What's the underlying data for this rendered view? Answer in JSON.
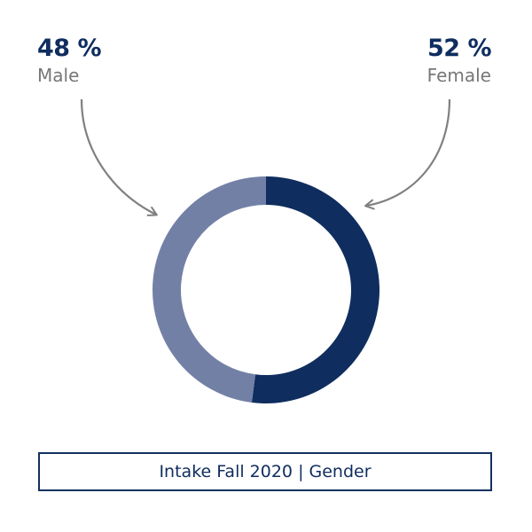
{
  "chart_data": {
    "type": "pie",
    "variant": "donut",
    "title": "Intake Fall 2020 | Gender",
    "series": [
      {
        "name": "Male",
        "value": 48,
        "value_label": "48 %",
        "color": "#7380a6"
      },
      {
        "name": "Female",
        "value": 52,
        "value_label": "52 %",
        "color": "#0f2d5f"
      }
    ],
    "unit": "%"
  },
  "colors": {
    "accent": "#0f2d5f",
    "secondary": "#7380a6",
    "label_gray": "#777777",
    "arrow_gray": "#808080"
  }
}
